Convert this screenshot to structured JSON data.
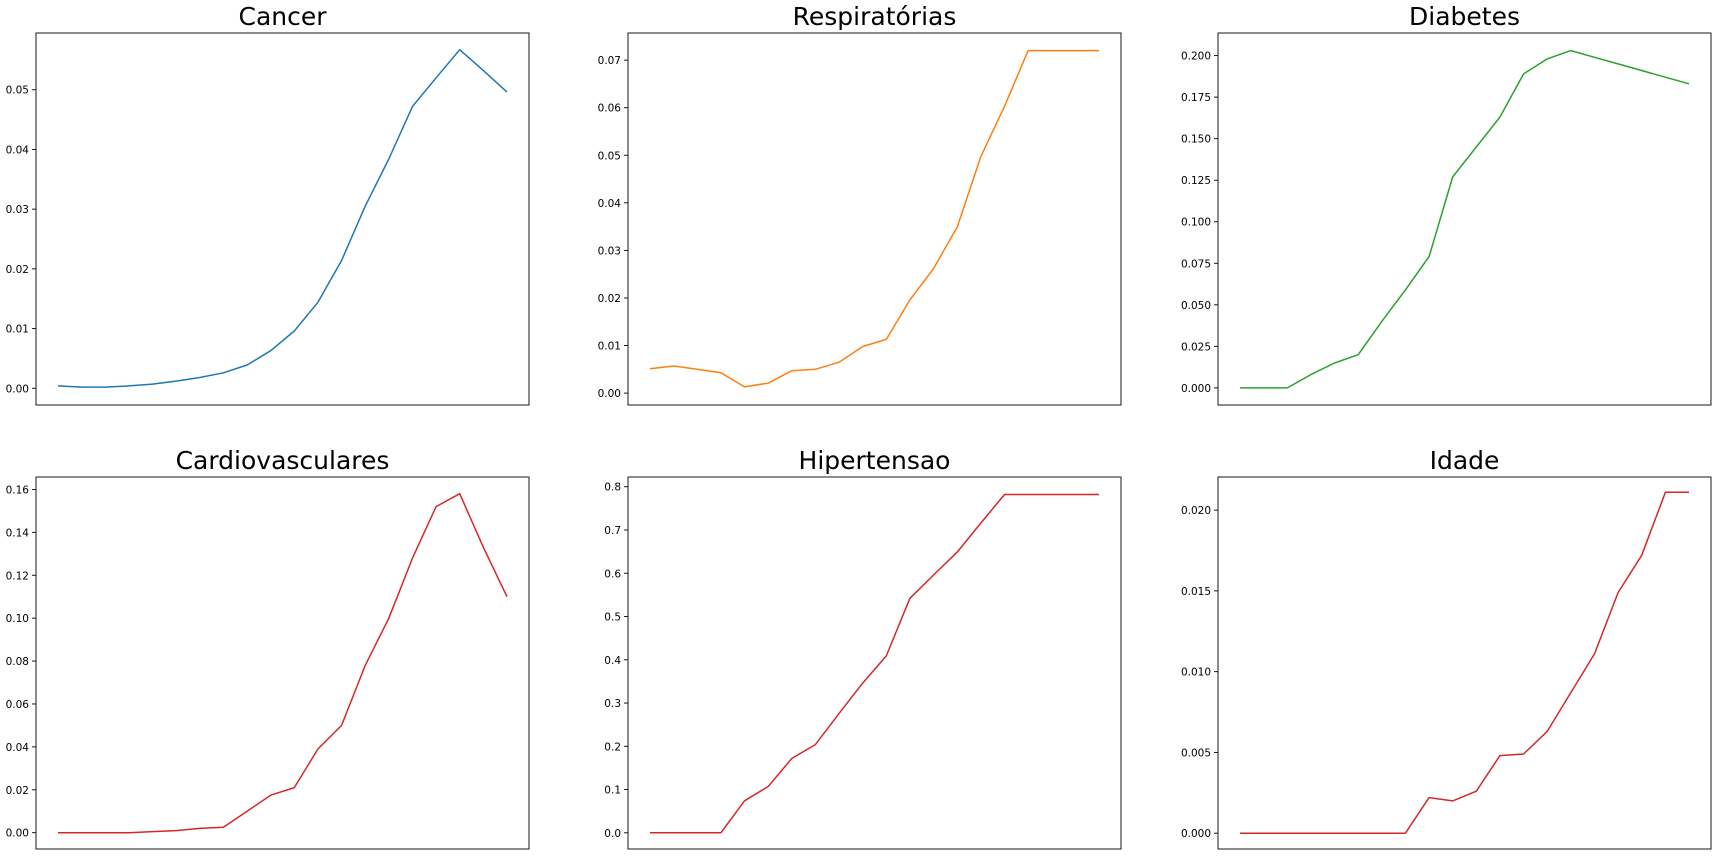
{
  "chart_data": [
    {
      "type": "line",
      "title": "Cancer",
      "color": "#1f77b4",
      "xticks_visible": false,
      "ylim": [
        -0.0028,
        0.0595
      ],
      "yticks": [
        0.0,
        0.01,
        0.02,
        0.03,
        0.04,
        0.05
      ],
      "ytick_labels": [
        "0.00",
        "0.01",
        "0.02",
        "0.03",
        "0.04",
        "0.05"
      ],
      "x": [
        0,
        1,
        2,
        3,
        4,
        5,
        6,
        7,
        8,
        9,
        10,
        11,
        12,
        13,
        14,
        15,
        16,
        17,
        18,
        19
      ],
      "values": [
        0.0004,
        0.0002,
        0.0002,
        0.0004,
        0.0007,
        0.0012,
        0.0018,
        0.0026,
        0.0039,
        0.0063,
        0.0096,
        0.0144,
        0.0214,
        0.0305,
        0.0384,
        0.0472,
        0.052,
        0.0567,
        0.0532,
        0.0496
      ]
    },
    {
      "type": "line",
      "title": "Respiratórias",
      "color": "#ff7f0e",
      "xticks_visible": false,
      "ylim": [
        -0.0025,
        0.0757
      ],
      "yticks": [
        0.0,
        0.01,
        0.02,
        0.03,
        0.04,
        0.05,
        0.06,
        0.07
      ],
      "ytick_labels": [
        "0.00",
        "0.01",
        "0.02",
        "0.03",
        "0.04",
        "0.05",
        "0.06",
        "0.07"
      ],
      "x": [
        0,
        1,
        2,
        3,
        4,
        5,
        6,
        7,
        8,
        9,
        10,
        11,
        12,
        13,
        14,
        15,
        16,
        17,
        18,
        19
      ],
      "values": [
        0.0051,
        0.0057,
        0.005,
        0.0043,
        0.0013,
        0.0021,
        0.0047,
        0.005,
        0.0065,
        0.0098,
        0.0113,
        0.0196,
        0.0262,
        0.0349,
        0.0497,
        0.0603,
        0.072,
        0.072,
        0.072,
        0.072
      ]
    },
    {
      "type": "line",
      "title": "Diabetes",
      "color": "#2ca02c",
      "xticks_visible": false,
      "ylim": [
        -0.0103,
        0.2136
      ],
      "yticks": [
        0.0,
        0.025,
        0.05,
        0.075,
        0.1,
        0.125,
        0.15,
        0.175,
        0.2
      ],
      "ytick_labels": [
        "0.000",
        "0.025",
        "0.050",
        "0.075",
        "0.100",
        "0.125",
        "0.150",
        "0.175",
        "0.200"
      ],
      "x": [
        0,
        1,
        2,
        3,
        4,
        5,
        6,
        7,
        8,
        9,
        10,
        11,
        12,
        13,
        14,
        15,
        16,
        17,
        18,
        19
      ],
      "values": [
        0.0,
        0.0,
        0.0,
        0.008,
        0.015,
        0.02,
        0.04,
        0.059,
        0.079,
        0.127,
        0.145,
        0.163,
        0.189,
        0.198,
        0.203,
        0.199,
        0.195,
        0.191,
        0.187,
        0.183
      ]
    },
    {
      "type": "line",
      "title": "Cardiovasculares",
      "color": "#d62728",
      "xticks_visible": false,
      "ylim": [
        -0.0076,
        0.1658
      ],
      "yticks": [
        0.0,
        0.02,
        0.04,
        0.06,
        0.08,
        0.1,
        0.12,
        0.14,
        0.16
      ],
      "ytick_labels": [
        "0.00",
        "0.02",
        "0.04",
        "0.06",
        "0.08",
        "0.10",
        "0.12",
        "0.14",
        "0.16"
      ],
      "x": [
        0,
        1,
        2,
        3,
        4,
        5,
        6,
        7,
        8,
        9,
        10,
        11,
        12,
        13,
        14,
        15,
        16,
        17,
        18,
        19
      ],
      "values": [
        0.0,
        0.0,
        0.0,
        0.0,
        0.0005,
        0.001,
        0.002,
        0.0025,
        0.01,
        0.0175,
        0.021,
        0.039,
        0.05,
        0.078,
        0.1,
        0.128,
        0.152,
        0.158,
        0.133,
        0.11
      ]
    },
    {
      "type": "line",
      "title": "Hipertensao",
      "color": "#d62728",
      "xticks_visible": false,
      "ylim": [
        -0.0374,
        0.8225
      ],
      "yticks": [
        0.0,
        0.1,
        0.2,
        0.3,
        0.4,
        0.5,
        0.6,
        0.7,
        0.8
      ],
      "ytick_labels": [
        "0.0",
        "0.1",
        "0.2",
        "0.3",
        "0.4",
        "0.5",
        "0.6",
        "0.7",
        "0.8"
      ],
      "x": [
        0,
        1,
        2,
        3,
        4,
        5,
        6,
        7,
        8,
        9,
        10,
        11,
        12,
        13,
        14,
        15,
        16,
        17,
        18,
        19
      ],
      "values": [
        0.0,
        0.0,
        0.0,
        0.0,
        0.074,
        0.107,
        0.172,
        0.204,
        0.276,
        0.346,
        0.409,
        0.542,
        0.596,
        0.649,
        0.716,
        0.782,
        0.782,
        0.782,
        0.782,
        0.782
      ]
    },
    {
      "type": "line",
      "title": "Idade",
      "color": "#d62728",
      "xticks_visible": false,
      "ylim": [
        -0.00098,
        0.02205
      ],
      "yticks": [
        0.0,
        0.005,
        0.01,
        0.015,
        0.02
      ],
      "ytick_labels": [
        "0.000",
        "0.005",
        "0.010",
        "0.015",
        "0.020"
      ],
      "x": [
        0,
        1,
        2,
        3,
        4,
        5,
        6,
        7,
        8,
        9,
        10,
        11,
        12,
        13,
        14,
        15,
        16,
        17,
        18,
        19
      ],
      "values": [
        0.0,
        0.0,
        0.0,
        0.0,
        0.0,
        0.0,
        0.0,
        0.0,
        0.0022,
        0.002,
        0.0026,
        0.0048,
        0.0049,
        0.0063,
        0.0087,
        0.0111,
        0.0149,
        0.0172,
        0.0211,
        0.0211
      ]
    }
  ]
}
